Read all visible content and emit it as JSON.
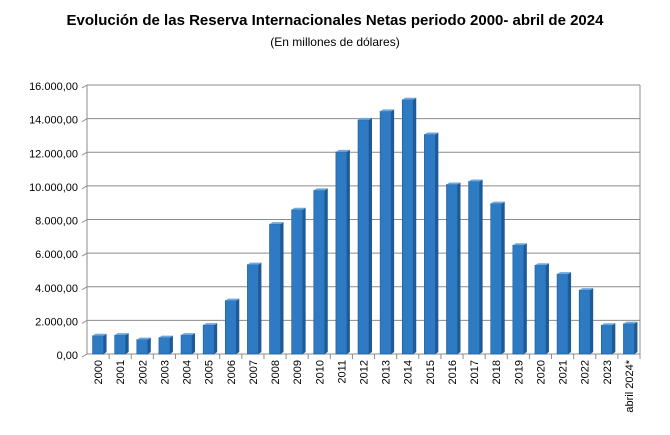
{
  "chart_data": {
    "type": "bar",
    "title": "Evolución  de las Reserva Internacionales Netas periodo 2000- abril de 2024",
    "subtitle": "(En millones de dólares)",
    "categories": [
      "2000",
      "2001",
      "2002",
      "2003",
      "2004",
      "2005",
      "2006",
      "2007",
      "2008",
      "2009",
      "2010",
      "2011",
      "2012",
      "2013",
      "2014",
      "2015",
      "2016",
      "2017",
      "2018",
      "2019",
      "2020",
      "2021",
      "2022",
      "2023",
      "abril 2024*"
    ],
    "series": [
      {
        "values": [
          1085,
          1123,
          854,
          976,
          1123,
          1714,
          3178,
          5319,
          7722,
          8580,
          9730,
          12019,
          13927,
          14430,
          15123,
          13056,
          10081,
          10261,
          8946,
          6468,
          5276,
          4753,
          3796,
          1709,
          1796
        ]
      }
    ],
    "ylim": [
      0,
      16000
    ],
    "yticks": [
      "0,00",
      "2.000,00",
      "4.000,00",
      "6.000,00",
      "8.000,00",
      "10.000,00",
      "12.000,00",
      "14.000,00",
      "16.000,00"
    ],
    "ytick_values": [
      0,
      2000,
      4000,
      6000,
      8000,
      10000,
      12000,
      14000,
      16000
    ],
    "grid": true,
    "legend": "none",
    "colors": {
      "bar": "#2e7bc4",
      "bar_dark": "#1d5a96",
      "bar_top": "#6aa8e0",
      "grid": "#8c8c8c"
    }
  }
}
